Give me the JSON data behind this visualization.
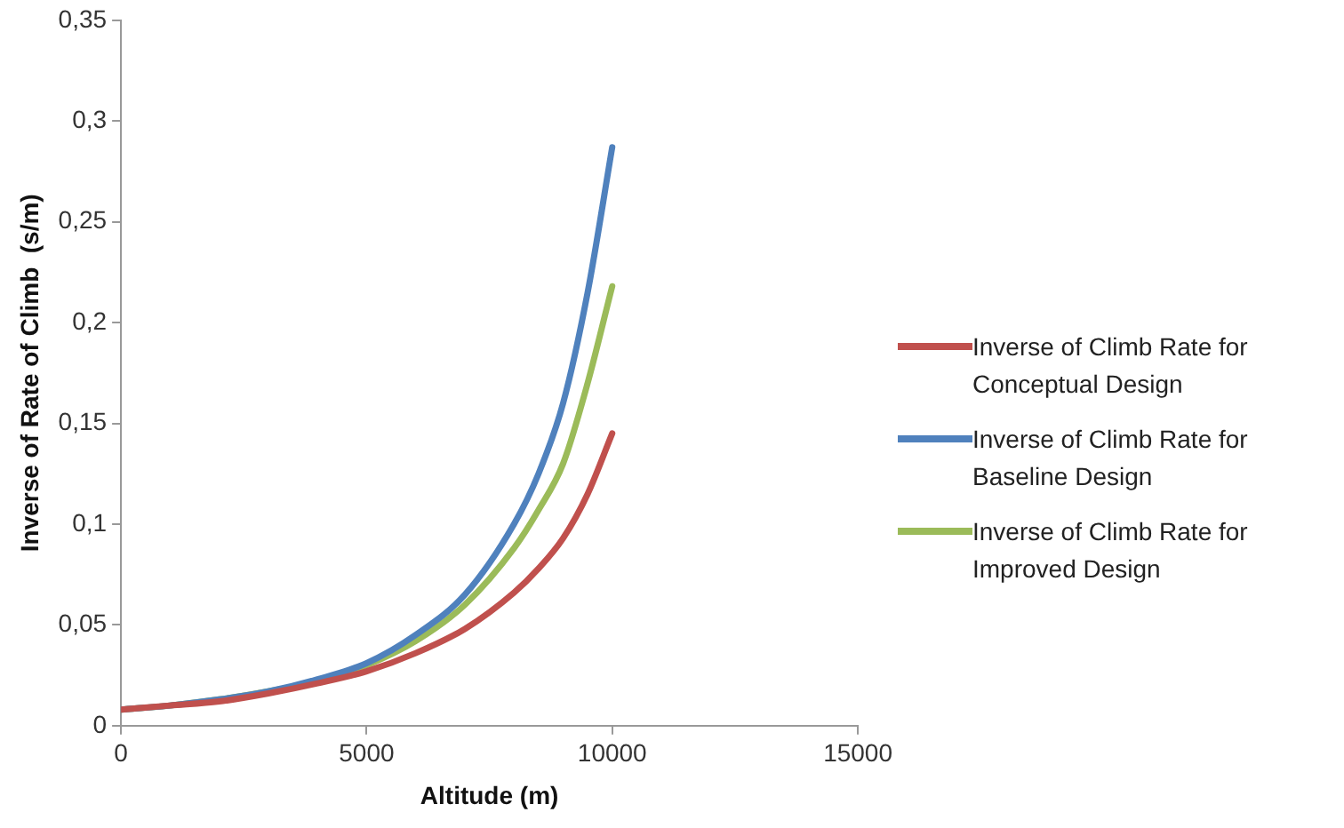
{
  "chart_data": {
    "type": "line",
    "xlabel": "Altitude (m)",
    "ylabel": "Inverse of Rate of Climb  (s/m)",
    "x": [
      0,
      1000,
      2000,
      3000,
      4000,
      5000,
      6000,
      7000,
      8000,
      8500,
      9000,
      9500,
      10000
    ],
    "series": [
      {
        "name": "Inverse of Climb Rate for Conceptual Design",
        "color": "#c0504d",
        "values": [
          0.008,
          0.01,
          0.012,
          0.016,
          0.021,
          0.027,
          0.036,
          0.048,
          0.066,
          0.078,
          0.093,
          0.115,
          0.145
        ]
      },
      {
        "name": "Inverse of Climb Rate for Baseline Design",
        "color": "#4f81bd",
        "values": [
          0.008,
          0.01,
          0.013,
          0.017,
          0.023,
          0.031,
          0.045,
          0.065,
          0.1,
          0.125,
          0.16,
          0.215,
          0.287
        ]
      },
      {
        "name": "Inverse of Climb Rate for Improved Design",
        "color": "#9bbb59",
        "values": [
          0.008,
          0.01,
          0.013,
          0.017,
          0.022,
          0.03,
          0.042,
          0.06,
          0.088,
          0.107,
          0.13,
          0.17,
          0.218
        ]
      }
    ],
    "xlim": [
      0,
      15000
    ],
    "xticks": [
      0,
      5000,
      10000,
      15000
    ],
    "ylim": [
      0,
      0.35
    ],
    "yticks": [
      0,
      {
        "value": 0.05,
        "label": "0,05"
      },
      {
        "value": 0.1,
        "label": "0,1"
      },
      {
        "value": 0.15,
        "label": "0,15"
      },
      {
        "value": 0.2,
        "label": "0,2"
      },
      {
        "value": 0.25,
        "label": "0,25"
      },
      {
        "value": 0.3,
        "label": "0,3"
      },
      {
        "value": 0.35,
        "label": "0,35"
      }
    ],
    "grid": false,
    "legend": "right",
    "marker": "none",
    "line_style": "solid"
  }
}
